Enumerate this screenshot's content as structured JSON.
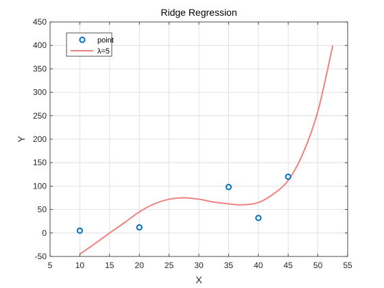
{
  "chart_data": {
    "type": "scatter",
    "title": "Ridge Regression",
    "xlabel": "X",
    "ylabel": "Y",
    "xlim": [
      5,
      55
    ],
    "ylim": [
      -50,
      450
    ],
    "xticks": [
      5,
      10,
      15,
      20,
      25,
      30,
      35,
      40,
      45,
      50,
      55
    ],
    "yticks": [
      -50,
      0,
      50,
      100,
      150,
      200,
      250,
      300,
      350,
      400,
      450
    ],
    "grid": true,
    "legend_position": "top-left",
    "series": [
      {
        "name": "point",
        "kind": "markers",
        "marker": "circle",
        "color": "#0072BD",
        "x": [
          10,
          20,
          35,
          40,
          45
        ],
        "y": [
          5,
          12,
          98,
          32,
          120
        ]
      },
      {
        "name": "λ=5",
        "kind": "line",
        "color": "#F08080",
        "x": [
          10,
          12.5,
          15,
          17.5,
          20,
          22.5,
          25,
          27.5,
          30,
          32.5,
          35,
          37.5,
          40,
          42.5,
          45,
          47.5,
          50,
          52.5
        ],
        "y": [
          -45,
          -23,
          0,
          22,
          45,
          62,
          72,
          75,
          72,
          66,
          62,
          60,
          65,
          83,
          112,
          170,
          260,
          400
        ]
      }
    ]
  }
}
